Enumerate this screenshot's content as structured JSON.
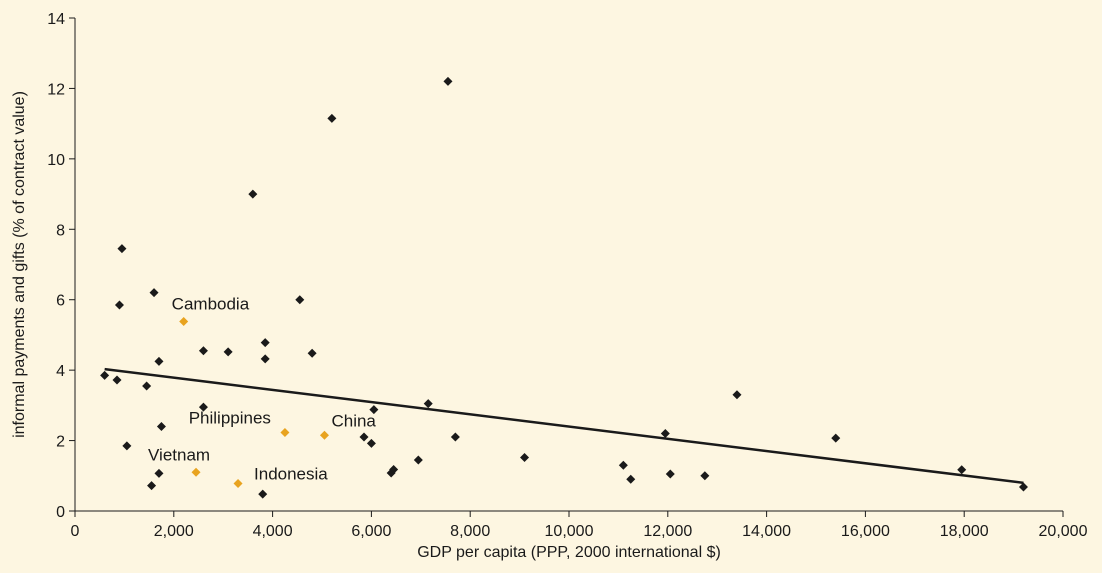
{
  "colors": {
    "background": "#fdf6e1",
    "point_default": "#1a1a1a",
    "point_highlight": "#e8a31f",
    "line": "#1a1a1a"
  },
  "chart_data": {
    "type": "scatter",
    "title": "",
    "xlabel": "GDP per capita (PPP, 2000 international $)",
    "ylabel": "informal payments and gifts (% of contract value)",
    "xlim": [
      0,
      20000
    ],
    "ylim": [
      0,
      14
    ],
    "xticks": [
      0,
      2000,
      4000,
      6000,
      8000,
      10000,
      12000,
      14000,
      16000,
      18000,
      20000
    ],
    "xtick_labels": [
      "0",
      "2,000",
      "4,000",
      "6,000",
      "8,000",
      "10,000",
      "12,000",
      "14,000",
      "16,000",
      "18,000",
      "20,000"
    ],
    "yticks": [
      0,
      2,
      4,
      6,
      8,
      10,
      12,
      14
    ],
    "ytick_labels": [
      "0",
      "2",
      "4",
      "6",
      "8",
      "10",
      "12",
      "14"
    ],
    "grid": false,
    "trend_line": {
      "x": [
        600,
        19200
      ],
      "y": [
        4.03,
        0.8
      ]
    },
    "series": [
      {
        "points": [
          [
            600,
            3.85
          ],
          [
            850,
            3.72
          ],
          [
            900,
            5.85
          ],
          [
            950,
            7.45
          ],
          [
            1050,
            1.85
          ],
          [
            1450,
            3.55
          ],
          [
            1550,
            0.72
          ],
          [
            1600,
            6.2
          ],
          [
            1700,
            1.07
          ],
          [
            1700,
            4.25
          ],
          [
            1750,
            2.4
          ],
          [
            2600,
            4.55
          ],
          [
            2600,
            2.95
          ],
          [
            3100,
            4.52
          ],
          [
            3600,
            9.0
          ],
          [
            3800,
            0.48
          ],
          [
            3850,
            4.78
          ],
          [
            3850,
            4.32
          ],
          [
            4550,
            6.0
          ],
          [
            4800,
            4.48
          ],
          [
            5200,
            11.15
          ],
          [
            5850,
            2.1
          ],
          [
            6000,
            1.92
          ],
          [
            6050,
            2.88
          ],
          [
            6400,
            1.08
          ],
          [
            6450,
            1.18
          ],
          [
            6950,
            1.45
          ],
          [
            7150,
            3.05
          ],
          [
            7550,
            12.2
          ],
          [
            7700,
            2.1
          ],
          [
            9100,
            1.52
          ],
          [
            11100,
            1.3
          ],
          [
            11250,
            0.9
          ],
          [
            11950,
            2.2
          ],
          [
            12050,
            1.05
          ],
          [
            12750,
            1.0
          ],
          [
            13400,
            3.3
          ],
          [
            15400,
            2.07
          ],
          [
            17950,
            1.17
          ],
          [
            19200,
            0.68
          ]
        ]
      },
      {
        "points": [
          {
            "label": "Cambodia",
            "x": 2200,
            "y": 5.38
          },
          {
            "label": "Philippines",
            "x": 4250,
            "y": 2.23
          },
          {
            "label": "China",
            "x": 5050,
            "y": 2.15
          },
          {
            "label": "Vietnam",
            "x": 2450,
            "y": 1.1
          },
          {
            "label": "Indonesia",
            "x": 3300,
            "y": 0.78
          }
        ]
      }
    ]
  }
}
